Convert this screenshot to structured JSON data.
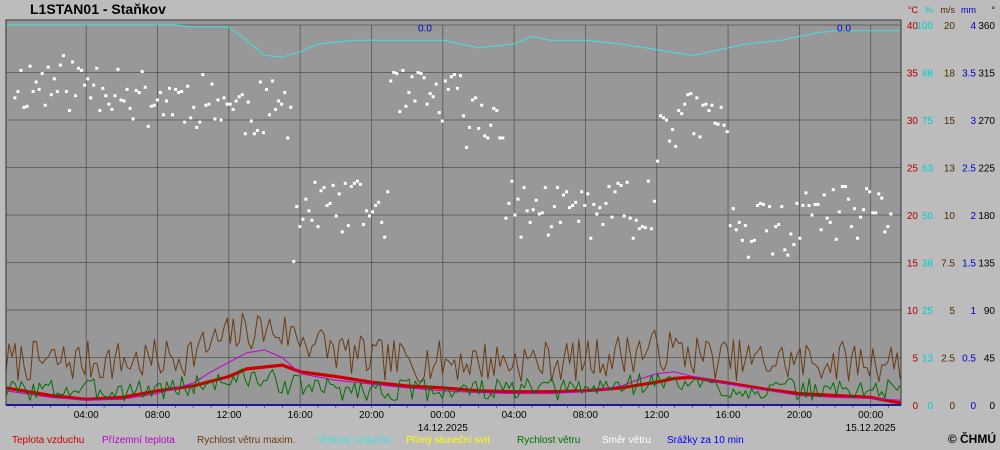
{
  "title": "L1STAN01 - Staňkov",
  "copyright": "© ČHMÚ",
  "chart_data": {
    "type": "line",
    "x_ticks": [
      {
        "hour": 4,
        "label": "04:00"
      },
      {
        "hour": 8,
        "label": "08:00"
      },
      {
        "hour": 12,
        "label": "12:00"
      },
      {
        "hour": 16,
        "label": "16:00"
      },
      {
        "hour": 20,
        "label": "20:00"
      },
      {
        "hour": 24,
        "label": "00:00",
        "date": "14.12.2025"
      },
      {
        "hour": 28,
        "label": "04:00"
      },
      {
        "hour": 32,
        "label": "08:00"
      },
      {
        "hour": 36,
        "label": "12:00"
      },
      {
        "hour": 40,
        "label": "16:00"
      },
      {
        "hour": 44,
        "label": "20:00"
      },
      {
        "hour": 48,
        "label": "00:00",
        "date": "15.12.2025"
      }
    ],
    "x_range_hours": [
      -0.5,
      49.7
    ],
    "y_axes": [
      {
        "unit": "°C",
        "color": "#b00000",
        "min": 0,
        "max": 40,
        "ticks": [
          0,
          5,
          10,
          15,
          20,
          25,
          30,
          35,
          40
        ]
      },
      {
        "unit": "%",
        "color": "#00d0d0",
        "min": 0,
        "max": 100,
        "ticks": [
          0,
          13,
          25,
          38,
          50,
          63,
          75,
          88,
          100
        ]
      },
      {
        "unit": "m/s",
        "color": "#502800",
        "min": 0,
        "max": 20,
        "ticks": [
          "0",
          "2.5",
          "5",
          "7.5",
          "10",
          "13",
          "15",
          "18",
          "20"
        ]
      },
      {
        "unit": "mm",
        "color": "#0000cc",
        "min": 0,
        "max": 4,
        "ticks": [
          "0",
          "0.5",
          "1",
          "1.5",
          "2",
          "2.5",
          "3",
          "3.5",
          "4"
        ]
      },
      {
        "unit": "°",
        "color": "#000000",
        "min": 0,
        "max": 360,
        "ticks": [
          0,
          45,
          90,
          135,
          180,
          225,
          270,
          315,
          360
        ]
      }
    ],
    "grid": true,
    "precip_labels": [
      {
        "hour": 23,
        "text": "0.0"
      },
      {
        "hour": 46.5,
        "text": "0.0"
      }
    ],
    "series": [
      {
        "name": "Teplota vzduchu",
        "color": "#cc0000",
        "axis": "°C",
        "points": [
          [
            -0.5,
            1.8
          ],
          [
            2,
            1.0
          ],
          [
            4,
            0.6
          ],
          [
            6,
            0.8
          ],
          [
            8,
            1.5
          ],
          [
            10,
            2.0
          ],
          [
            12,
            3.0
          ],
          [
            13,
            3.8
          ],
          [
            14,
            4.0
          ],
          [
            15,
            4.2
          ],
          [
            16,
            3.5
          ],
          [
            18,
            3.0
          ],
          [
            20,
            2.4
          ],
          [
            22,
            2.0
          ],
          [
            24,
            1.8
          ],
          [
            26,
            1.5
          ],
          [
            28,
            1.4
          ],
          [
            30,
            1.4
          ],
          [
            32,
            1.5
          ],
          [
            34,
            1.8
          ],
          [
            36,
            2.4
          ],
          [
            37,
            2.8
          ],
          [
            38,
            2.9
          ],
          [
            40,
            2.3
          ],
          [
            42,
            1.7
          ],
          [
            44,
            1.2
          ],
          [
            46,
            1.0
          ],
          [
            48,
            0.8
          ],
          [
            49.7,
            0.2
          ]
        ]
      },
      {
        "name": "Přízemní teplota",
        "color": "#c000d0",
        "axis": "°C",
        "points": [
          [
            -0.5,
            1.5
          ],
          [
            2,
            0.8
          ],
          [
            4,
            0.5
          ],
          [
            6,
            0.6
          ],
          [
            8,
            1.2
          ],
          [
            10,
            2.3
          ],
          [
            11,
            3.5
          ],
          [
            12,
            4.5
          ],
          [
            13,
            5.5
          ],
          [
            14,
            5.8
          ],
          [
            15,
            5.0
          ],
          [
            16,
            3.3
          ],
          [
            18,
            2.6
          ],
          [
            20,
            2.2
          ],
          [
            22,
            1.8
          ],
          [
            24,
            1.5
          ],
          [
            26,
            1.3
          ],
          [
            28,
            1.2
          ],
          [
            30,
            1.2
          ],
          [
            32,
            1.4
          ],
          [
            34,
            2.0
          ],
          [
            35,
            2.7
          ],
          [
            36,
            3.3
          ],
          [
            37,
            3.5
          ],
          [
            38,
            3.0
          ],
          [
            40,
            2.2
          ],
          [
            42,
            1.6
          ],
          [
            44,
            1.0
          ],
          [
            46,
            0.8
          ],
          [
            48,
            0.7
          ],
          [
            49.7,
            0.5
          ]
        ]
      },
      {
        "name": "Rychlost větru maxim.",
        "color": "#6b3a10",
        "axis": "m/s",
        "seed": 7,
        "base": 2.3,
        "amp": 1.1,
        "bumps": [
          [
            13,
            1.3
          ],
          [
            16,
            0.8
          ],
          [
            36,
            0.6
          ]
        ]
      },
      {
        "name": "Vlhkost vzduchu",
        "color": "#40e0e0",
        "axis": "%",
        "points": [
          [
            -0.5,
            100
          ],
          [
            9,
            100
          ],
          [
            10,
            99.5
          ],
          [
            12,
            99.5
          ],
          [
            13,
            96
          ],
          [
            14,
            92
          ],
          [
            15,
            91.5
          ],
          [
            16,
            93
          ],
          [
            17,
            95
          ],
          [
            19,
            96
          ],
          [
            22,
            96
          ],
          [
            24,
            96
          ],
          [
            25,
            95
          ],
          [
            26,
            94
          ],
          [
            28,
            95
          ],
          [
            29,
            97
          ],
          [
            30,
            96
          ],
          [
            32,
            96
          ],
          [
            34,
            95
          ],
          [
            36,
            93.5
          ],
          [
            38,
            92
          ],
          [
            38.5,
            92.3
          ],
          [
            39,
            93
          ],
          [
            41,
            95
          ],
          [
            43,
            96
          ],
          [
            44,
            97
          ],
          [
            45,
            98
          ],
          [
            46,
            98.5
          ],
          [
            48,
            98.5
          ],
          [
            49.7,
            98.5
          ]
        ]
      },
      {
        "name": "Přímý sluneční svit",
        "color": "#ffff00",
        "axis": "%",
        "points": []
      },
      {
        "name": "Rychlost větru",
        "color": "#007000",
        "axis": "m/s",
        "seed": 3,
        "base": 0.8,
        "amp": 0.6,
        "bumps": [
          [
            13,
            0.6
          ],
          [
            36,
            0.4
          ]
        ]
      },
      {
        "name": "Směr větru",
        "color": "#ffffff",
        "axis": "°",
        "seed": 11
      },
      {
        "name": "Srážky za 10 min",
        "color": "#0000ff",
        "axis": "mm",
        "points": [
          [
            -0.5,
            0
          ],
          [
            49.7,
            0
          ]
        ]
      }
    ]
  }
}
